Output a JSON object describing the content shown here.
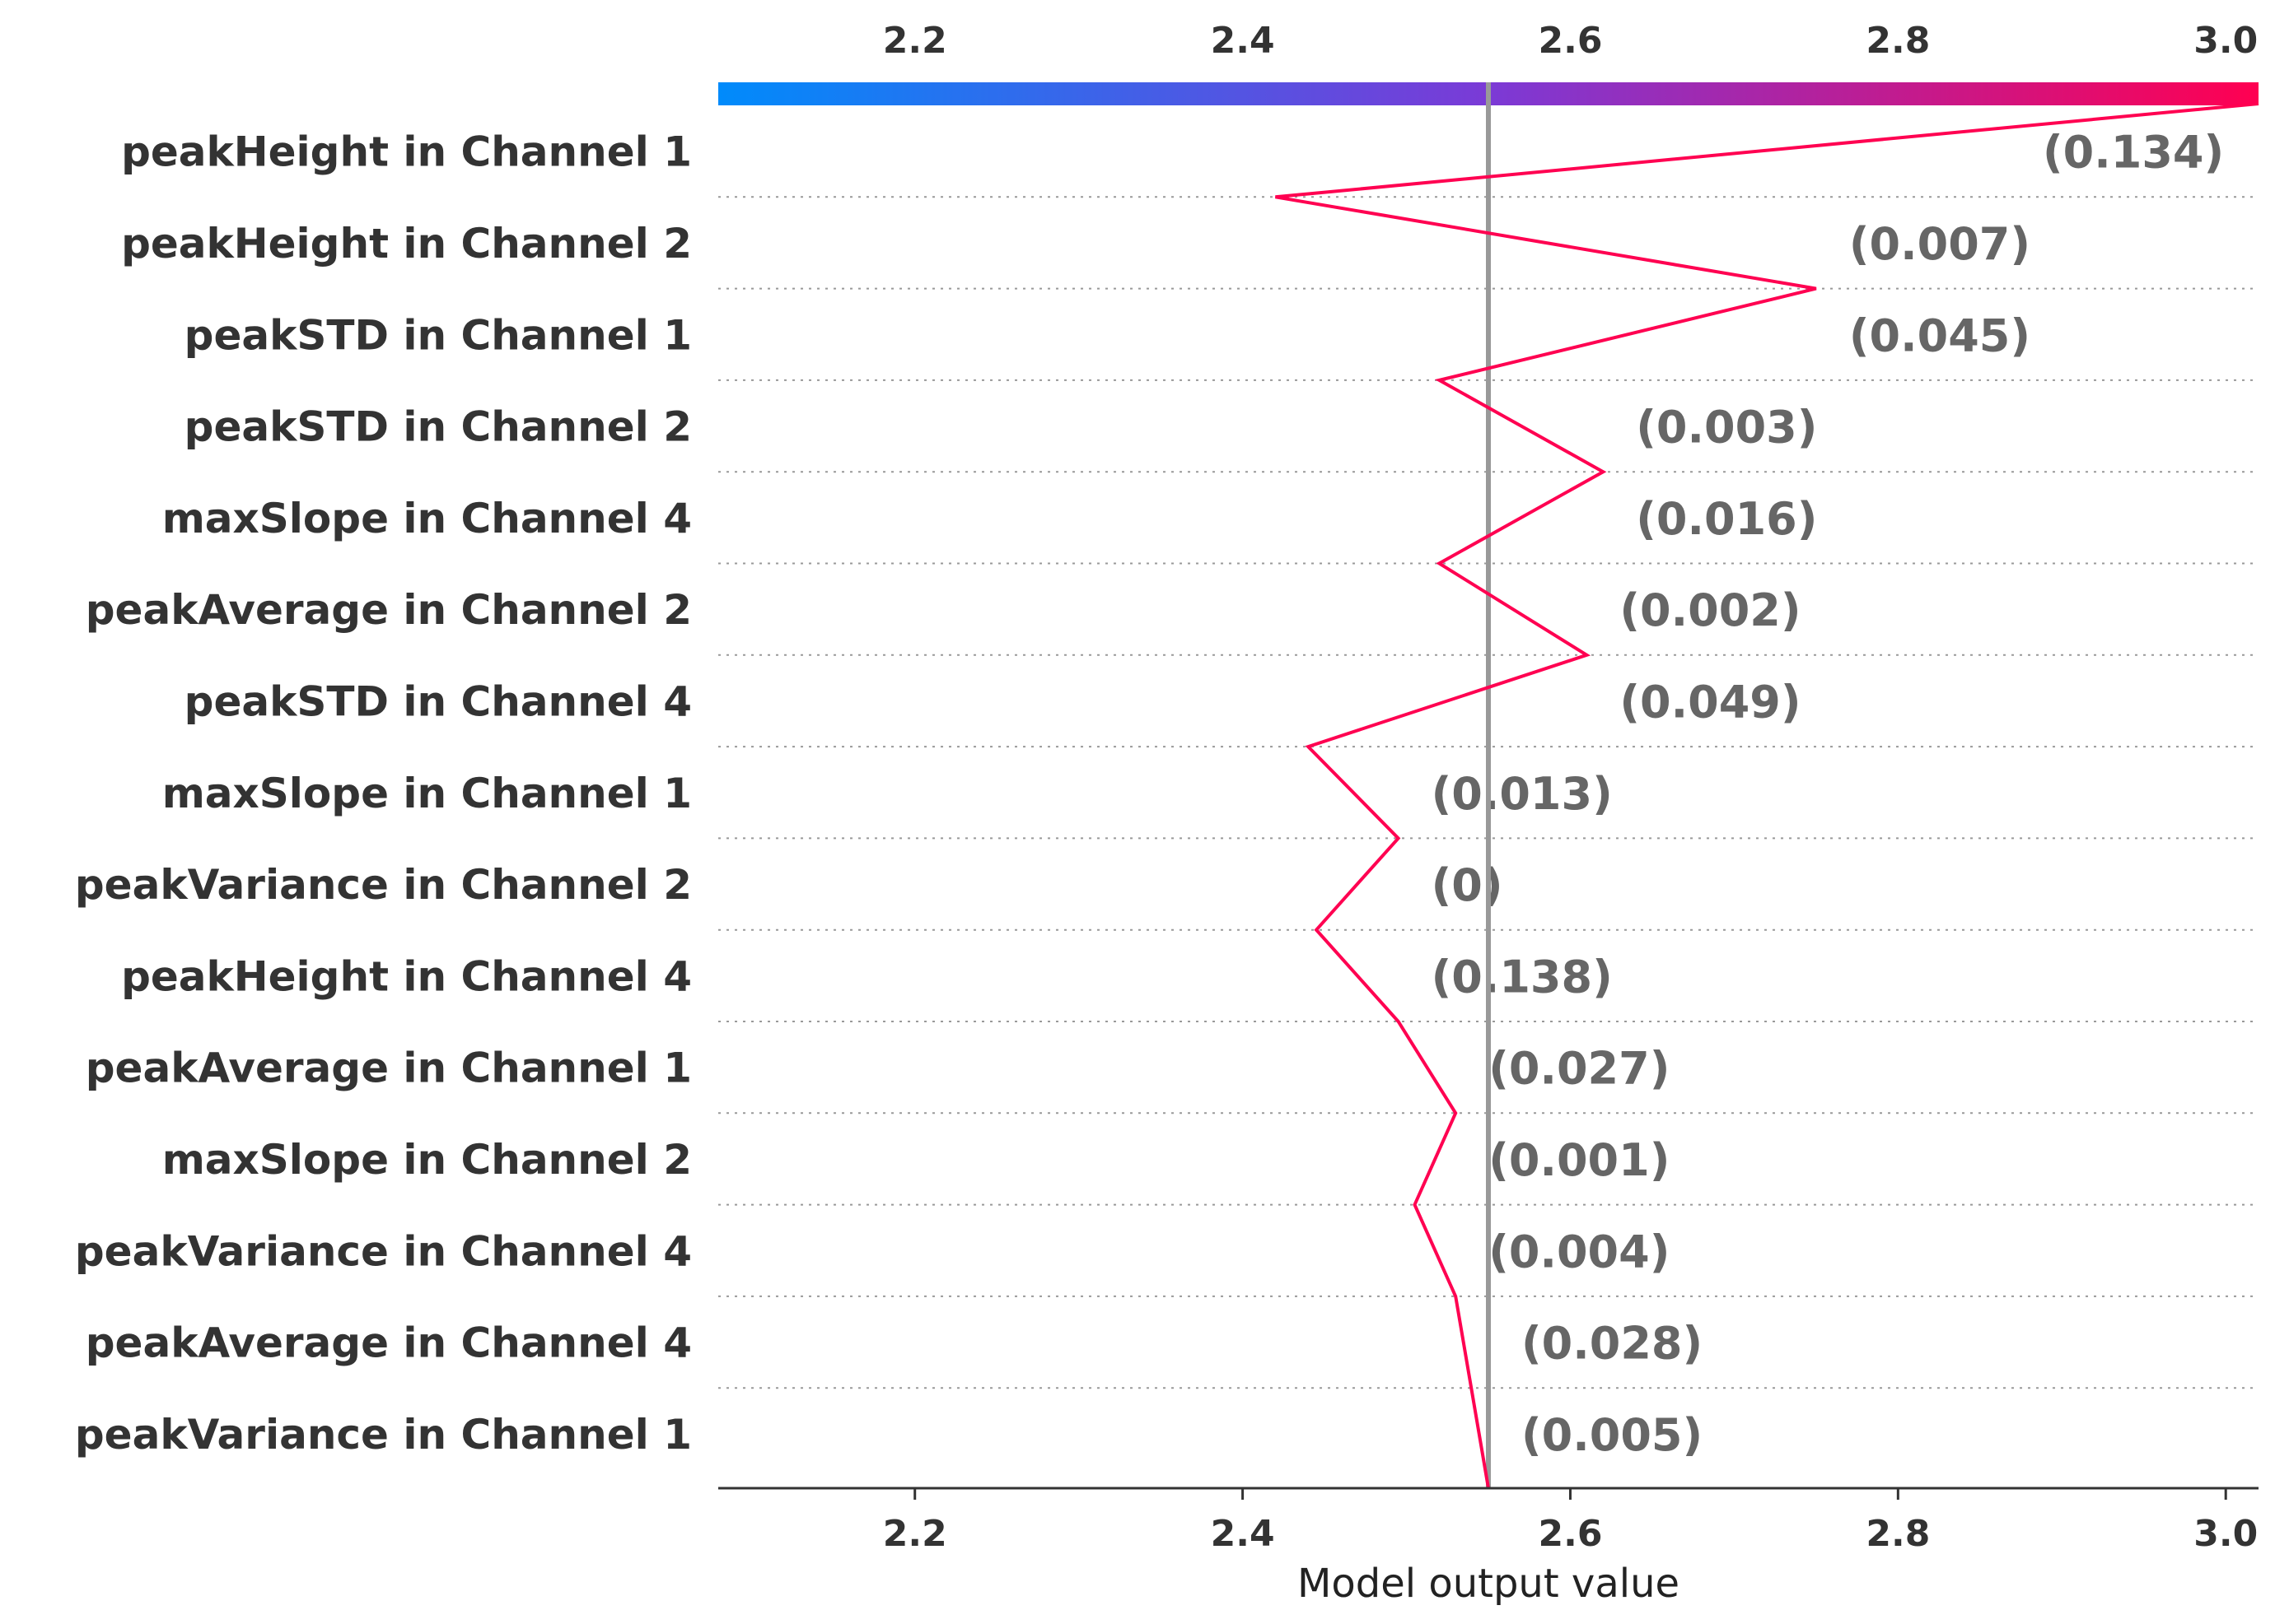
{
  "chart_data": {
    "type": "line",
    "xlabel": "Model output value",
    "xlim": [
      2.08,
      3.02
    ],
    "xticks": [
      2.2,
      2.4,
      2.6,
      2.8,
      3.0
    ],
    "xtick_labels": [
      "2.2",
      "2.4",
      "2.6",
      "2.8",
      "3.0"
    ],
    "base_value": 2.55,
    "colorbar": {
      "colors": [
        "#008bfb",
        "#7b3ad6",
        "#ff0051"
      ]
    },
    "line_color": "#ff0051",
    "features": [
      {
        "name": "peakHeight in Channel 1",
        "value_label": "(0.134)"
      },
      {
        "name": "peakHeight in Channel 2",
        "value_label": "(0.007)"
      },
      {
        "name": "peakSTD in Channel 1",
        "value_label": "(0.045)"
      },
      {
        "name": "peakSTD in Channel 2",
        "value_label": "(0.003)"
      },
      {
        "name": "maxSlope in Channel 4",
        "value_label": "(0.016)"
      },
      {
        "name": "peakAverage in Channel 2",
        "value_label": "(0.002)"
      },
      {
        "name": "peakSTD in Channel 4",
        "value_label": "(0.049)"
      },
      {
        "name": "maxSlope in Channel 1",
        "value_label": "(0.013)"
      },
      {
        "name": "peakVariance in Channel 2",
        "value_label": "(0)"
      },
      {
        "name": "peakHeight in Channel 4",
        "value_label": "(0.138)"
      },
      {
        "name": "peakAverage in Channel 1",
        "value_label": "(0.027)"
      },
      {
        "name": "maxSlope in Channel 2",
        "value_label": "(0.001)"
      },
      {
        "name": "peakVariance in Channel 4",
        "value_label": "(0.004)"
      },
      {
        "name": "peakAverage in Channel 4",
        "value_label": "(0.028)"
      },
      {
        "name": "peakVariance in Channel 1",
        "value_label": "(0.005)"
      }
    ],
    "path_points": [
      3.02,
      2.42,
      2.75,
      2.52,
      2.62,
      2.52,
      2.61,
      2.44,
      2.495,
      2.445,
      2.495,
      2.53,
      2.505,
      2.53,
      2.55
    ]
  }
}
